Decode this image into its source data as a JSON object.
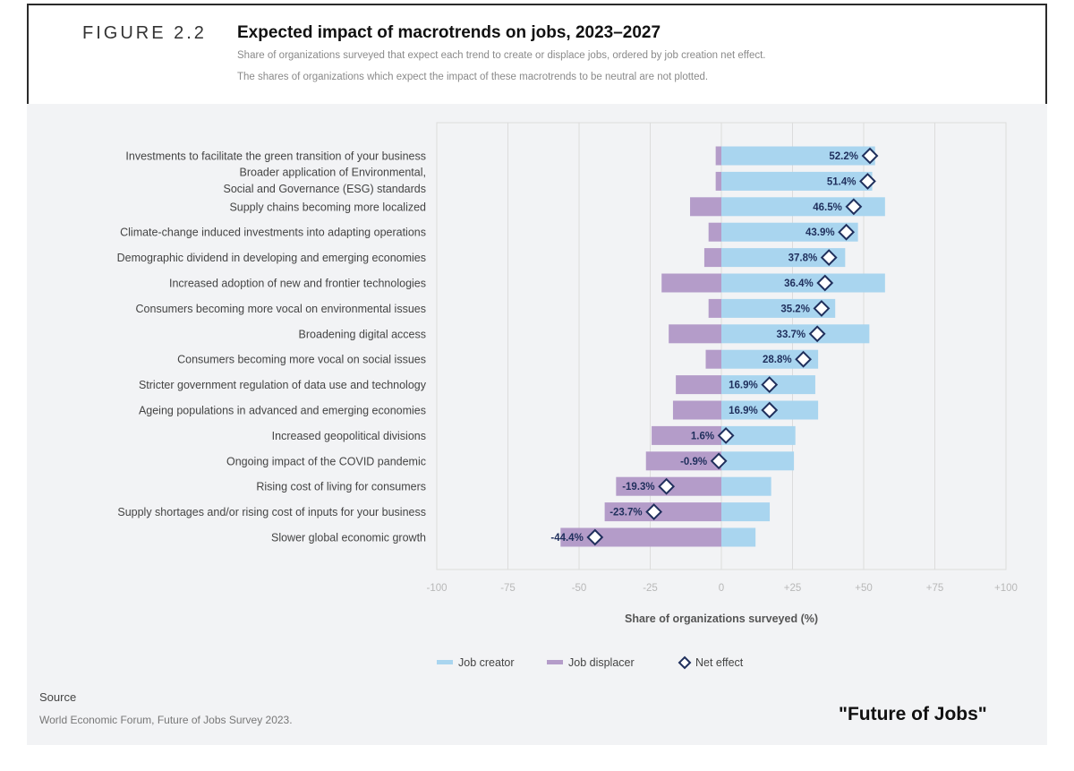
{
  "figure": {
    "label": "FIGURE 2.2",
    "title": "Expected impact of macrotrends on jobs, 2023–2027",
    "subtitle_1": "Share of organizations surveyed that expect each trend to create or displace jobs, ordered by job creation net effect.",
    "subtitle_2": "The shares of organizations which expect the impact of these macrotrends to be neutral are not plotted."
  },
  "source": {
    "heading": "Source",
    "text": "World Economic Forum, Future of Jobs Survey 2023."
  },
  "watermark": "\"Future of Jobs\"",
  "colors": {
    "creator": "#a9d5ef",
    "displacer": "#b49cc9",
    "net_marker_stroke": "#1f2f5c",
    "label_text": "#1f2f5c"
  },
  "chart_data": {
    "type": "bar",
    "orientation": "horizontal",
    "xlabel": "Share of organizations surveyed (%)",
    "xlim": [
      -100,
      100
    ],
    "xticks": [
      "-100",
      "-75",
      "-50",
      "-25",
      "0",
      "+25",
      "+50",
      "+75",
      "+100"
    ],
    "xtick_values": [
      -100,
      -75,
      -50,
      -25,
      0,
      25,
      50,
      75,
      100
    ],
    "grid": true,
    "legend": [
      "Job creator",
      "Job displacer",
      "Net effect"
    ],
    "legend_position": "bottom-center",
    "categories": [
      [
        "Investments to facilitate the green transition of your business"
      ],
      [
        "Broader application of Environmental,",
        "Social and Governance (ESG) standards"
      ],
      [
        "Supply chains becoming more localized"
      ],
      [
        "Climate-change induced investments into adapting operations"
      ],
      [
        "Demographic dividend in developing and emerging economies"
      ],
      [
        "Increased adoption of new and frontier technologies"
      ],
      [
        "Consumers becoming more vocal on environmental issues"
      ],
      [
        "Broadening digital access"
      ],
      [
        "Consumers becoming more vocal on social issues"
      ],
      [
        "Stricter government regulation of data use and technology"
      ],
      [
        "Ageing populations in advanced and emerging economies"
      ],
      [
        "Increased geopolitical divisions"
      ],
      [
        "Ongoing impact of the COVID pandemic"
      ],
      [
        "Rising cost of living for consumers"
      ],
      [
        "Supply shortages and/or rising cost of inputs for your business"
      ],
      [
        "Slower global economic growth"
      ]
    ],
    "series": [
      {
        "name": "Job creator",
        "values": [
          54,
          53,
          57.5,
          48,
          43.5,
          57.5,
          40,
          52,
          34,
          33,
          34,
          26,
          25.5,
          17.5,
          17,
          12
        ]
      },
      {
        "name": "Job displacer",
        "values": [
          -2,
          -2,
          -11,
          -4.5,
          -6,
          -21,
          -4.5,
          -18.5,
          -5.5,
          -16,
          -17,
          -24.5,
          -26.5,
          -37,
          -41,
          -56.5
        ]
      },
      {
        "name": "Net effect",
        "values": [
          52.2,
          51.4,
          46.5,
          43.9,
          37.8,
          36.4,
          35.2,
          33.7,
          28.8,
          16.9,
          16.9,
          1.6,
          -0.9,
          -19.3,
          -23.7,
          -44.4
        ]
      }
    ],
    "net_labels": [
      "52.2%",
      "51.4%",
      "46.5%",
      "43.9%",
      "37.8%",
      "36.4%",
      "35.2%",
      "33.7%",
      "28.8%",
      "16.9%",
      "16.9%",
      "1.6%",
      "-0.9%",
      "-19.3%",
      "-23.7%",
      "-44.4%"
    ]
  }
}
